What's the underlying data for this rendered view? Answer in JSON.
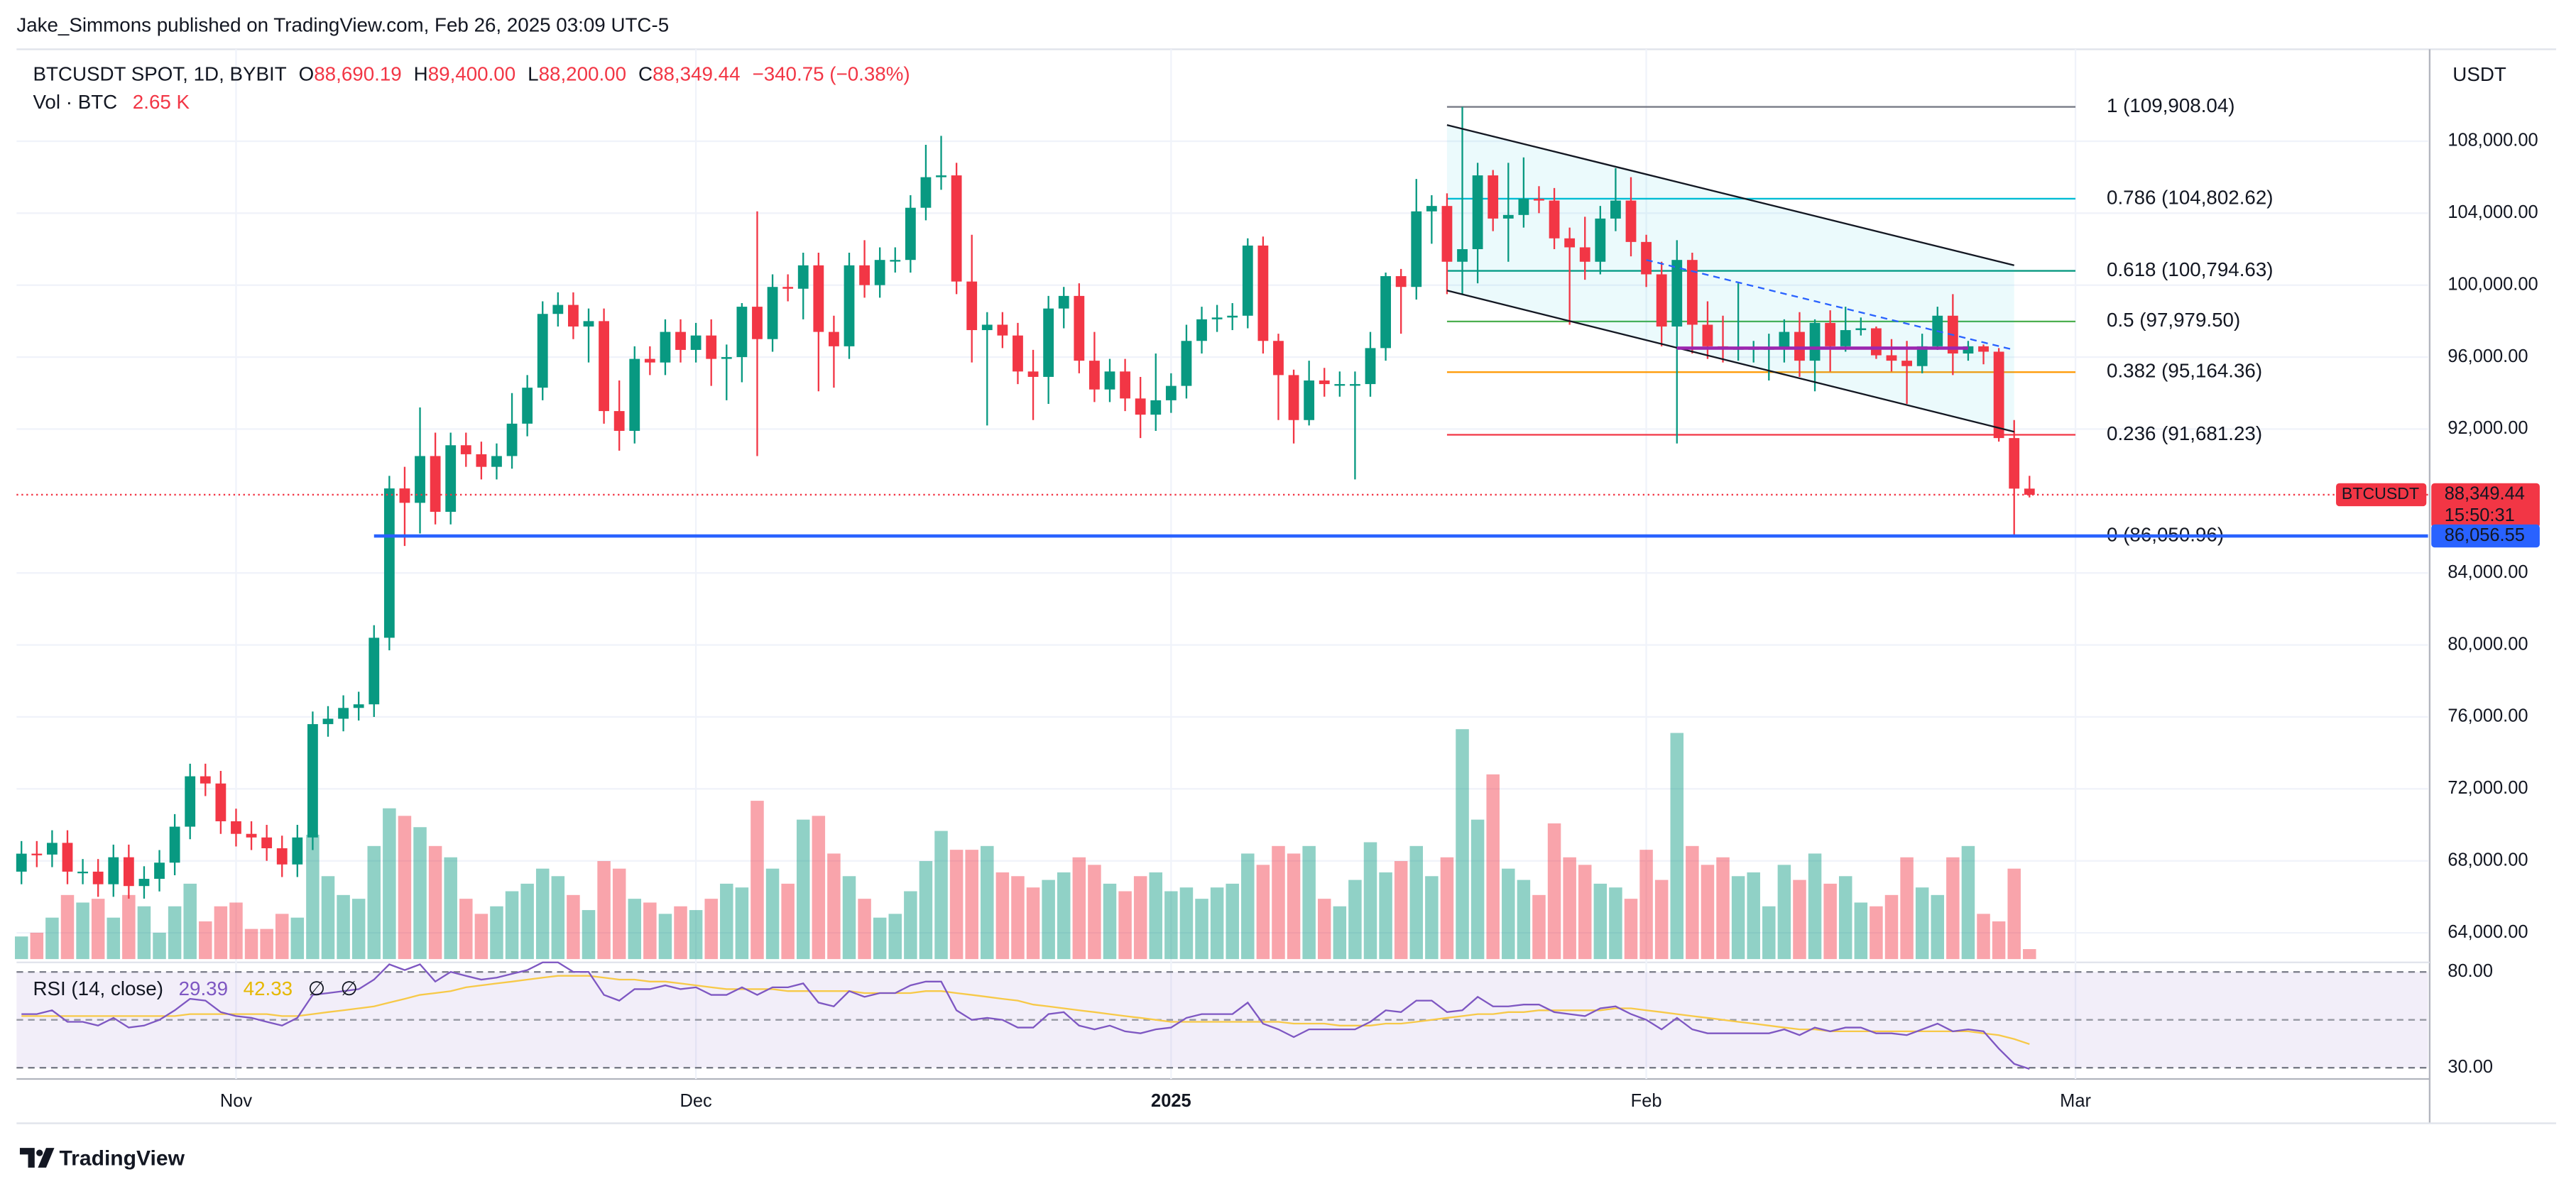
{
  "header": {
    "publisher": "Jake_Simmons published on TradingView.com, Feb 26, 2025 03:09 UTC-5"
  },
  "chart_data": {
    "type": "candlestick",
    "symbol": "BTCUSDT SPOT, 1D, BYBIT",
    "legend": [
      {
        "key": "O",
        "value": "88,690.19"
      },
      {
        "key": "H",
        "value": "89,400.00"
      },
      {
        "key": "L",
        "value": "88,200.00"
      },
      {
        "key": "C",
        "value": "88,349.44"
      }
    ],
    "change": "−340.75 (−0.38%)",
    "currency": "USDT",
    "up_color": "#089981",
    "down_color": "#f23645",
    "open": [
      67400,
      68400,
      68350,
      69000,
      67400,
      67400,
      66700,
      68200,
      66600,
      67000,
      67900,
      69900,
      72700,
      72300,
      70200,
      69500,
      69300,
      68700,
      67800,
      69300,
      75600,
      75900,
      76500,
      76700,
      80400,
      88700,
      87900,
      90500,
      87400,
      91100,
      90600,
      89900,
      90500,
      92300,
      94300,
      98400,
      98900,
      97700,
      98000,
      93000,
      91900,
      95900,
      95700,
      97400,
      96400,
      97200,
      95900,
      96000,
      98800,
      97000,
      99900,
      99800,
      101100,
      97400,
      96600,
      101100,
      100000,
      101400,
      101400,
      104300,
      106000,
      106100,
      100200,
      97500,
      97800,
      97200,
      95200,
      94900,
      98700,
      99400,
      95800,
      94200,
      95200,
      93700,
      92800,
      93600,
      94400,
      96900,
      98100,
      98200,
      98300,
      102200,
      96900,
      95000,
      92500,
      94700,
      94500,
      94500,
      94500,
      96500,
      100500,
      99900,
      104100,
      104400,
      101300,
      102000,
      106100,
      103700,
      103900,
      104800,
      104700,
      102600,
      102100,
      101300,
      103700,
      104700,
      102400,
      100600,
      97700,
      101400,
      97800,
      96600,
      96500,
      96500,
      96500,
      96500,
      97400,
      95800,
      97900,
      96600,
      97500,
      97600,
      96100,
      95800,
      95500,
      96600,
      98300,
      96200,
      96600,
      96300,
      91500,
      88690.19
    ],
    "high": [
      69100,
      69100,
      69700,
      69700,
      68100,
      68100,
      68900,
      68900,
      67700,
      68600,
      70600,
      73400,
      73400,
      73000,
      70900,
      70200,
      70000,
      69400,
      70000,
      76300,
      76600,
      77200,
      77400,
      81100,
      89400,
      89900,
      93200,
      91800,
      91800,
      91800,
      91300,
      91200,
      94000,
      95000,
      99100,
      99600,
      99600,
      98700,
      98700,
      94700,
      96600,
      96600,
      98100,
      98100,
      97900,
      98100,
      96700,
      99000,
      104100,
      100600,
      100600,
      101800,
      101800,
      98300,
      101800,
      102500,
      102100,
      102100,
      105000,
      107800,
      108300,
      106800,
      102800,
      98500,
      98500,
      97900,
      96400,
      99400,
      99900,
      100100,
      97400,
      95900,
      95900,
      94900,
      96200,
      95100,
      97800,
      98800,
      98900,
      99000,
      102600,
      102700,
      97300,
      95300,
      95800,
      95400,
      95200,
      95200,
      97400,
      100700,
      100900,
      105900,
      105000,
      105100,
      109908.04,
      106800,
      106400,
      106800,
      107100,
      105500,
      105400,
      103200,
      103800,
      104400,
      106500,
      106000,
      102800,
      101300,
      102500,
      101800,
      99100,
      98300,
      100100,
      96900,
      97300,
      98100,
      98500,
      98100,
      98600,
      98800,
      98200,
      97700,
      97000,
      96900,
      97300,
      98800,
      99500,
      96900,
      96700,
      96500,
      92500,
      89400
    ],
    "low": [
      66700,
      67650,
      67650,
      66700,
      66700,
      66000,
      66000,
      65900,
      65900,
      66300,
      67200,
      69200,
      71600,
      69500,
      68800,
      68600,
      68000,
      67100,
      67100,
      68600,
      74900,
      75200,
      75800,
      76000,
      79700,
      85500,
      86200,
      86700,
      86700,
      89900,
      89200,
      89200,
      89800,
      91600,
      93600,
      97700,
      97000,
      95700,
      92300,
      90800,
      91200,
      95000,
      95000,
      95700,
      95700,
      94400,
      93600,
      94600,
      90500,
      96300,
      99100,
      98100,
      94100,
      94300,
      95900,
      99300,
      99300,
      100700,
      100700,
      103600,
      105300,
      99500,
      95700,
      92200,
      96500,
      94500,
      92500,
      93400,
      97600,
      95100,
      93500,
      93500,
      93000,
      91500,
      91900,
      92900,
      93700,
      96200,
      97400,
      97500,
      97600,
      96200,
      92500,
      91200,
      92200,
      93800,
      93800,
      89200,
      93800,
      95800,
      97300,
      99200,
      102300,
      99500,
      99500,
      100100,
      103000,
      101300,
      103200,
      104000,
      102000,
      97800,
      100300,
      100600,
      103000,
      101600,
      99900,
      96600,
      91200,
      96200,
      95900,
      95700,
      95800,
      95700,
      94700,
      95700,
      94900,
      94100,
      95200,
      96300,
      97200,
      95900,
      95200,
      93400,
      95100,
      96400,
      95000,
      95800,
      95600,
      91300,
      86050.96,
      88200
    ],
    "close": [
      68400,
      68350,
      69000,
      67400,
      67400,
      66700,
      68200,
      66600,
      67000,
      67900,
      69900,
      72700,
      72300,
      70200,
      69500,
      69300,
      68700,
      67800,
      69300,
      75600,
      75900,
      76500,
      76700,
      80400,
      88700,
      87900,
      90500,
      87400,
      91100,
      90600,
      89900,
      90500,
      92300,
      94300,
      98400,
      98900,
      97700,
      98000,
      93000,
      91900,
      95900,
      95700,
      97400,
      96400,
      97200,
      95900,
      96000,
      98800,
      97000,
      99900,
      99800,
      101100,
      97400,
      96600,
      101100,
      100000,
      101400,
      101400,
      104300,
      106000,
      106100,
      100200,
      97500,
      97800,
      97200,
      95200,
      94900,
      98700,
      99400,
      95800,
      94200,
      95200,
      93700,
      92800,
      93600,
      94400,
      96900,
      98100,
      98200,
      98300,
      102200,
      96900,
      95000,
      92500,
      94700,
      94500,
      94500,
      94500,
      96500,
      100500,
      99900,
      104100,
      104400,
      101300,
      102000,
      106100,
      103700,
      103900,
      104800,
      104700,
      102600,
      102100,
      101300,
      103700,
      104700,
      102400,
      100600,
      97700,
      101400,
      97800,
      96600,
      96500,
      96500,
      96500,
      96500,
      97400,
      95800,
      97900,
      96600,
      97500,
      97600,
      96100,
      95800,
      95500,
      96600,
      98300,
      96200,
      96600,
      96300,
      91500,
      88690.19,
      88349.44
    ],
    "xlim": [
      -0.32,
      157
    ],
    "xticks": [
      {
        "value": 14,
        "label": "Nov"
      },
      {
        "value": 44,
        "label": "Dec"
      },
      {
        "value": 75,
        "label": "2025"
      },
      {
        "value": 106,
        "label": "Feb"
      },
      {
        "value": 134,
        "label": "Mar"
      }
    ],
    "ylim": [
      62540,
      113110
    ],
    "yticks": [
      {
        "value": 64000,
        "label": "64,000.00"
      },
      {
        "value": 68000,
        "label": "68,000.00"
      },
      {
        "value": 72000,
        "label": "72,000.00"
      },
      {
        "value": 76000,
        "label": "76,000.00"
      },
      {
        "value": 80000,
        "label": "80,000.00"
      },
      {
        "value": 84000,
        "label": "84,000.00"
      },
      {
        "value": 92000,
        "label": "92,000.00"
      },
      {
        "value": 96000,
        "label": "96,000.00"
      },
      {
        "value": 100000,
        "label": "100,000.00"
      },
      {
        "value": 104000,
        "label": "104,000.00"
      },
      {
        "value": 108000,
        "label": "108,000.00"
      }
    ],
    "grid": true,
    "volume": {
      "name": "Vol · BTC",
      "value_label": "2.65 K",
      "up_color": "rgba(8,153,129,0.45)",
      "down_color": "rgba(242,54,69,0.45)",
      "values": [
        6,
        7,
        11,
        17,
        15,
        16,
        11,
        17,
        14,
        7,
        14,
        20,
        10,
        14,
        15,
        8,
        8,
        12,
        11,
        33,
        22,
        17,
        16,
        30,
        40,
        38,
        35,
        30,
        27,
        16,
        12,
        14,
        18,
        20,
        24,
        22,
        17,
        13,
        26,
        24,
        16,
        15,
        12,
        14,
        13,
        16,
        20,
        19,
        42,
        24,
        20,
        37,
        38,
        28,
        22,
        16,
        11,
        12,
        18,
        26,
        34,
        29,
        29,
        30,
        23,
        22,
        19,
        21,
        23,
        27,
        25,
        20,
        18,
        22,
        23,
        18,
        19,
        16,
        19,
        20,
        28,
        25,
        30,
        28,
        30,
        16,
        14,
        21,
        31,
        23,
        26,
        30,
        22,
        27,
        61,
        37,
        49,
        24,
        21,
        17,
        36,
        27,
        25,
        20,
        19,
        16,
        29,
        21,
        60,
        30,
        25,
        27,
        22,
        23,
        14,
        25,
        21,
        28,
        20,
        22,
        15,
        14,
        17,
        27,
        19,
        17,
        27,
        30,
        12,
        10,
        24,
        2.65
      ]
    },
    "rsi": {
      "name": "RSI (14, close)",
      "color": "#7e57c2",
      "ma_color": "#f7c948",
      "na": [
        "∅",
        "∅"
      ],
      "ylim": [
        25,
        85
      ],
      "yticks": [
        {
          "value": 80,
          "label": "80.00"
        },
        {
          "value": 30,
          "label": "30.00"
        }
      ],
      "values": [
        58,
        58,
        60,
        54,
        54,
        52,
        56,
        51,
        52,
        55,
        60,
        66,
        65,
        59,
        57,
        56,
        54,
        52,
        56,
        68,
        69,
        70,
        71,
        76,
        84,
        81,
        84,
        75,
        80,
        78,
        76,
        77,
        79,
        81,
        85,
        85,
        80,
        80,
        68,
        65,
        71,
        71,
        73,
        71,
        72,
        68,
        68,
        72,
        68,
        72,
        72,
        74,
        64,
        62,
        70,
        67,
        69,
        69,
        73,
        75,
        75,
        60,
        55,
        56,
        55,
        51,
        51,
        58,
        59,
        52,
        50,
        52,
        49,
        48,
        50,
        51,
        56,
        58,
        58,
        58,
        64,
        53,
        50,
        46,
        50,
        50,
        50,
        50,
        54,
        60,
        59,
        65,
        65,
        59,
        60,
        67,
        62,
        62,
        63,
        63,
        59,
        58,
        57,
        61,
        62,
        58,
        55,
        50,
        56,
        50,
        48,
        48,
        48,
        48,
        48,
        50,
        47,
        51,
        49,
        51,
        51,
        48,
        48,
        47,
        50,
        53,
        49,
        50,
        49,
        40,
        32,
        29.39
      ],
      "ma": [
        57,
        57,
        57,
        57,
        57,
        57,
        57,
        57,
        57,
        57,
        57,
        58,
        58,
        58,
        58,
        58,
        58,
        57,
        57,
        58,
        59,
        60,
        61,
        62,
        64,
        66,
        68,
        69,
        70,
        72,
        73,
        74,
        75,
        76,
        77,
        78,
        78,
        78,
        77,
        76,
        76,
        75,
        75,
        74,
        73,
        72,
        71,
        71,
        71,
        71,
        70,
        70,
        70,
        70,
        70,
        69,
        69,
        69,
        69,
        70,
        70,
        69,
        68,
        67,
        66,
        65,
        63,
        62,
        61,
        60,
        59,
        58,
        57,
        56,
        55,
        54,
        54,
        54,
        54,
        54,
        54,
        54,
        54,
        53,
        53,
        53,
        52,
        52,
        52,
        53,
        53,
        54,
        55,
        56,
        57,
        58,
        58,
        59,
        59,
        60,
        60,
        60,
        60,
        60,
        61,
        61,
        60,
        59,
        58,
        57,
        56,
        55,
        54,
        53,
        52,
        51,
        50,
        50,
        49,
        49,
        49,
        49,
        49,
        49,
        49,
        49,
        49,
        49,
        48,
        47,
        45,
        42.33
      ]
    },
    "last_price": {
      "value": 88349.44,
      "label": "88,349.44",
      "symbol_tag": "BTCUSDT",
      "countdown": "15:50:31"
    },
    "support": {
      "value": 86056.55,
      "label": "86,056.55",
      "start": 23,
      "color": "#2962ff"
    },
    "fib": {
      "x": [
        93,
        134
      ],
      "levels": [
        {
          "price": 109908.04,
          "label": "1 (109,908.04)",
          "color": "#787b86"
        },
        {
          "price": 104802.62,
          "label": "0.786 (104,802.62)",
          "color": "#00bcd4"
        },
        {
          "price": 100794.63,
          "label": "0.618 (100,794.63)",
          "color": "#089981"
        },
        {
          "price": 97979.5,
          "label": "0.5 (97,979.50)",
          "color": "#4caf50"
        },
        {
          "price": 95164.36,
          "label": "0.382 (95,164.36)",
          "color": "#ff9800"
        },
        {
          "price": 91681.23,
          "label": "0.236 (91,681.23)",
          "color": "#f23645"
        },
        {
          "price": 86050.96,
          "label": "0 (86,050.96)",
          "color": "#787b86"
        }
      ]
    },
    "channel": {
      "x": [
        93,
        130
      ],
      "upper": [
        108900,
        101100
      ],
      "lower": [
        99700,
        91850
      ],
      "color": "#131722",
      "fill": "rgba(0,188,212,0.08)"
    },
    "trend_line": {
      "x": [
        106,
        130
      ],
      "values": [
        101400,
        96400
      ],
      "color": "#2962ff"
    },
    "range_line": {
      "x": [
        108,
        127
      ],
      "value": 96500,
      "color": "#9c27b0"
    }
  },
  "footer": {
    "brand": "TradingView"
  }
}
